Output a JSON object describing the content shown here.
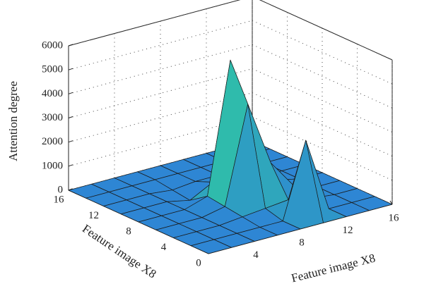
{
  "chart_data": {
    "type": "surface",
    "zlabel": "Attention degree",
    "xlabel": "Feature image X8",
    "ylabel": "Feature image X8",
    "x": [
      0,
      2,
      4,
      6,
      8,
      10,
      12,
      14,
      16
    ],
    "y": [
      0,
      2,
      4,
      6,
      8,
      10,
      12,
      14,
      16
    ],
    "z": [
      [
        0,
        0,
        0,
        0,
        0,
        0,
        0,
        0,
        0
      ],
      [
        0,
        0,
        0,
        0,
        0,
        3100,
        0,
        0,
        0
      ],
      [
        0,
        0,
        0,
        100,
        200,
        300,
        100,
        0,
        0
      ],
      [
        0,
        0,
        0,
        200,
        4200,
        1500,
        300,
        0,
        0
      ],
      [
        0,
        0,
        0,
        300,
        5700,
        600,
        200,
        0,
        0
      ],
      [
        0,
        0,
        0,
        -200,
        300,
        100,
        0,
        0,
        0
      ],
      [
        0,
        0,
        0,
        -100,
        0,
        0,
        0,
        0,
        0
      ],
      [
        0,
        0,
        0,
        0,
        0,
        0,
        0,
        0,
        0
      ],
      [
        0,
        0,
        0,
        0,
        0,
        0,
        0,
        0,
        0
      ]
    ],
    "xlim": [
      0,
      16
    ],
    "ylim": [
      0,
      16
    ],
    "zlim": [
      0,
      6000
    ],
    "xticks": [
      4,
      8,
      12,
      16
    ],
    "yticks": [
      0,
      4,
      8,
      12,
      16
    ],
    "zticks": [
      0,
      1000,
      2000,
      3000,
      4000,
      5000,
      6000
    ],
    "grid": true,
    "colormap": [
      "#2e86d4",
      "#2fc3a6",
      "#3a55c0"
    ]
  }
}
